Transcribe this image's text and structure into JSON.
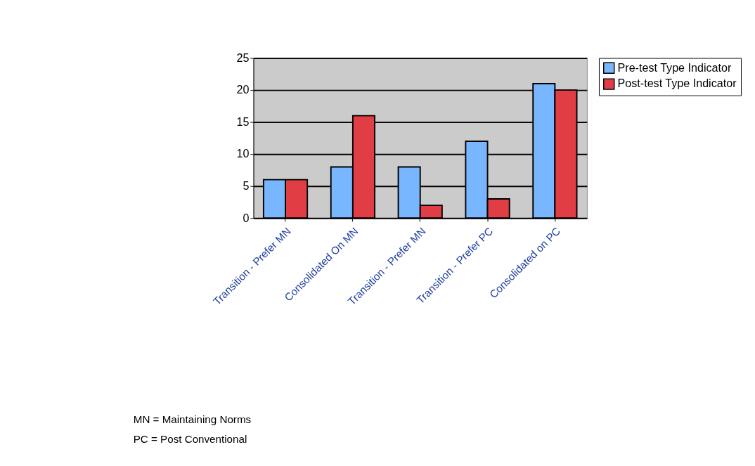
{
  "chart_data": {
    "type": "bar",
    "categories": [
      "Transition - Prefer MN",
      "Consolidated On MN",
      "Transition - Prefer MN",
      "Transition - Prefer PC",
      "Consolidated on PC"
    ],
    "series": [
      {
        "name": "Pre-test Type Indicator",
        "color": "#78b7ff",
        "values": [
          6,
          8,
          8,
          12,
          21
        ]
      },
      {
        "name": "Post-test Type Indicator",
        "color": "#e03e44",
        "values": [
          6,
          16,
          2,
          3,
          20
        ]
      }
    ],
    "ylim": [
      0,
      25
    ],
    "yticks": [
      0,
      5,
      10,
      15,
      20,
      25
    ],
    "grid": "y",
    "legend": "right",
    "annotations": [
      "MN = Maintaining Norms",
      "PC = Post Conventional"
    ]
  }
}
